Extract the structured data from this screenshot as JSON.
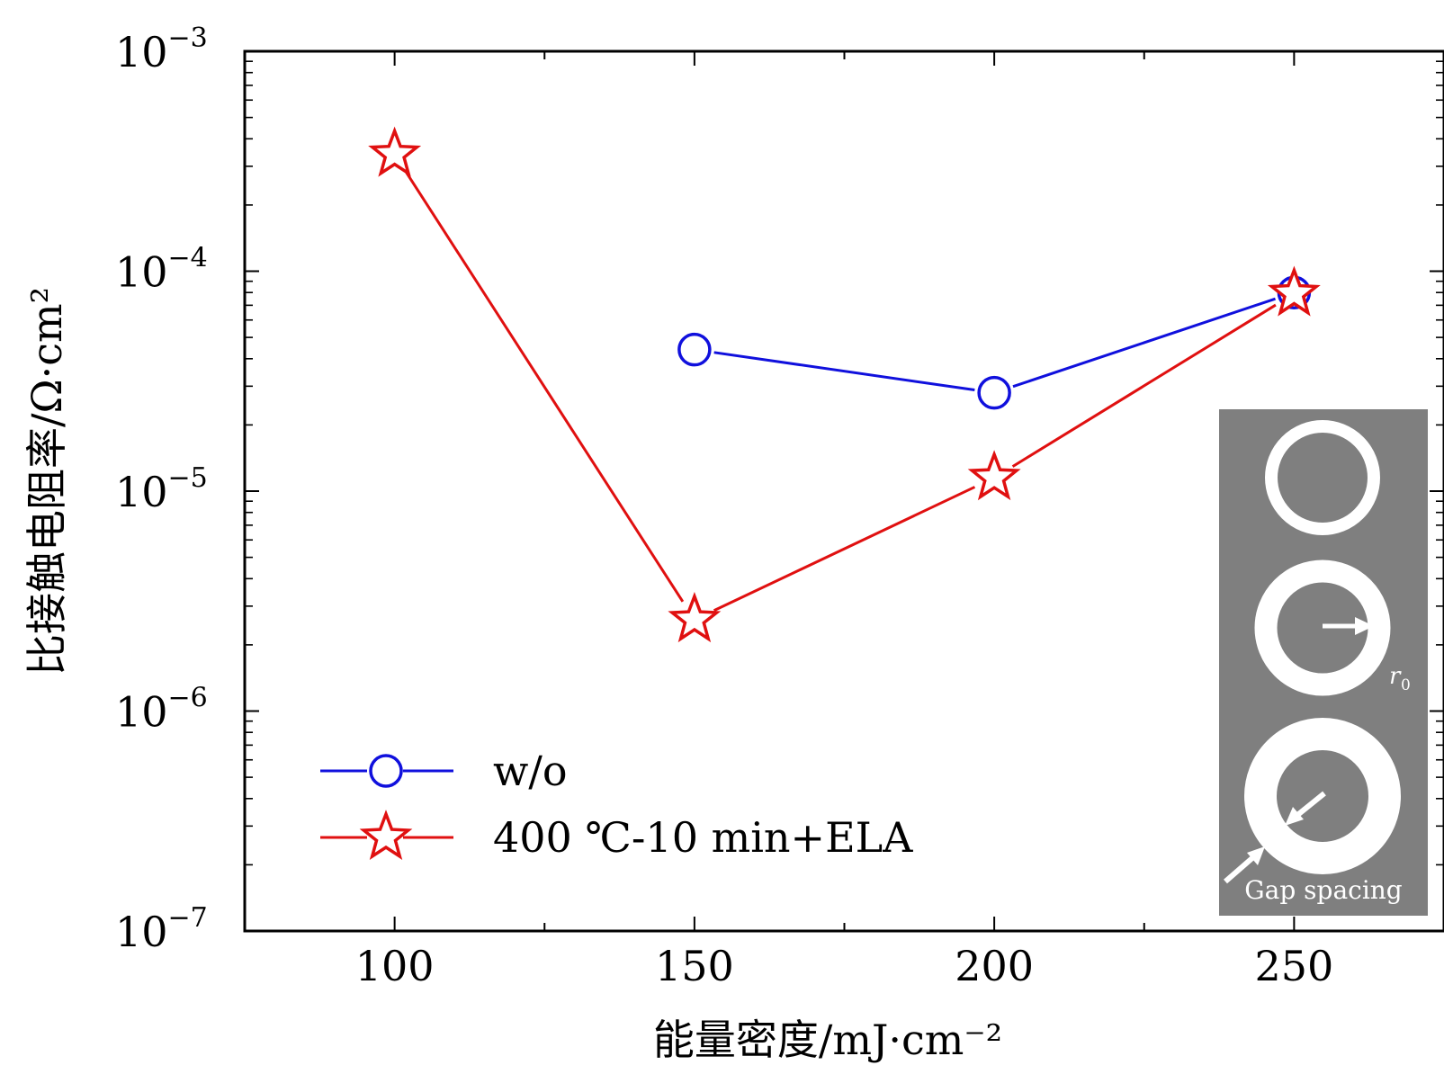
{
  "chart_data": {
    "type": "line",
    "xlabel": "能量密度/mJ·cm⁻²",
    "ylabel": "比接触电阻率/Ω·cm²",
    "xlim": [
      75,
      275
    ],
    "x_ticks": [
      {
        "value": 100,
        "label": "100"
      },
      {
        "value": 150,
        "label": "150"
      },
      {
        "value": 200,
        "label": "200"
      },
      {
        "value": 250,
        "label": "250"
      }
    ],
    "x_minor_ticks": [
      125,
      175,
      225
    ],
    "ylim": [
      1e-07,
      0.001
    ],
    "y_scale": "log",
    "y_ticks": [
      {
        "exp": -7,
        "base": "10",
        "sup": "−7"
      },
      {
        "exp": -6,
        "base": "10",
        "sup": "−6"
      },
      {
        "exp": -5,
        "base": "10",
        "sup": "−5"
      },
      {
        "exp": -4,
        "base": "10",
        "sup": "−4"
      },
      {
        "exp": -3,
        "base": "10",
        "sup": "−3"
      }
    ],
    "grid": false,
    "legend_position": "bottom-left",
    "series": [
      {
        "name": "w/o",
        "color": "#1010dd",
        "marker": "circle",
        "x": [
          150,
          200,
          250
        ],
        "y": [
          4.4e-05,
          2.8e-05,
          8e-05
        ]
      },
      {
        "name": "400 ℃-10 min+ELA",
        "color": "#e01010",
        "marker": "star",
        "x": [
          100,
          150,
          200,
          250
        ],
        "y": [
          0.00034,
          2.6e-06,
          1.15e-05,
          7.9e-05
        ]
      }
    ]
  },
  "inset": {
    "background": "#7f7f7f",
    "radius_label": "r",
    "radius_label_sub": "0",
    "gap_label": "Gap spacing"
  }
}
